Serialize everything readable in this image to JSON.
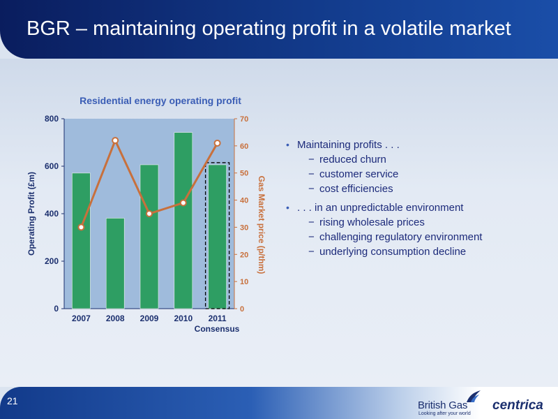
{
  "slide": {
    "title": "BGR – maintaining operating profit in a volatile market",
    "page_number": "21"
  },
  "bullets": [
    {
      "text": "Maintaining profits . . .",
      "sub": [
        "reduced churn",
        "customer service",
        "cost efficiencies"
      ]
    },
    {
      "text": ". . . in an unpredictable environment",
      "sub": [
        "rising wholesale prices",
        "challenging regulatory environment",
        "underlying consumption decline"
      ]
    }
  ],
  "branding": {
    "british_gas": "British Gas",
    "tagline": "Looking after your world",
    "centrica": "centrica"
  },
  "colors": {
    "bar": "#2e9e63",
    "line": "#c8703c",
    "plot_bg": "#9fbbdc",
    "title": "#3a5db5",
    "axis_left": "#1b2f6e"
  },
  "chart_data": {
    "type": "bar",
    "title": "Residential energy operating profit",
    "categories": [
      "2007",
      "2008",
      "2009",
      "2010",
      "2011"
    ],
    "category_note": "Consensus",
    "ylabel": "Operating Profit (£m)",
    "y2label": "Gas Market price (p/thm)",
    "ylim": [
      0,
      800
    ],
    "y2lim": [
      0,
      70
    ],
    "yticks": [
      0,
      200,
      400,
      600,
      800
    ],
    "y2ticks": [
      0,
      10,
      20,
      30,
      40,
      50,
      60,
      70
    ],
    "series": [
      {
        "type": "bar",
        "axis": "left",
        "values": [
          571,
          381,
          606,
          742,
          606
        ]
      },
      {
        "type": "line",
        "axis": "right",
        "values": [
          30,
          62,
          35,
          39,
          61
        ]
      }
    ],
    "dashed_highlight_category": "2011"
  }
}
